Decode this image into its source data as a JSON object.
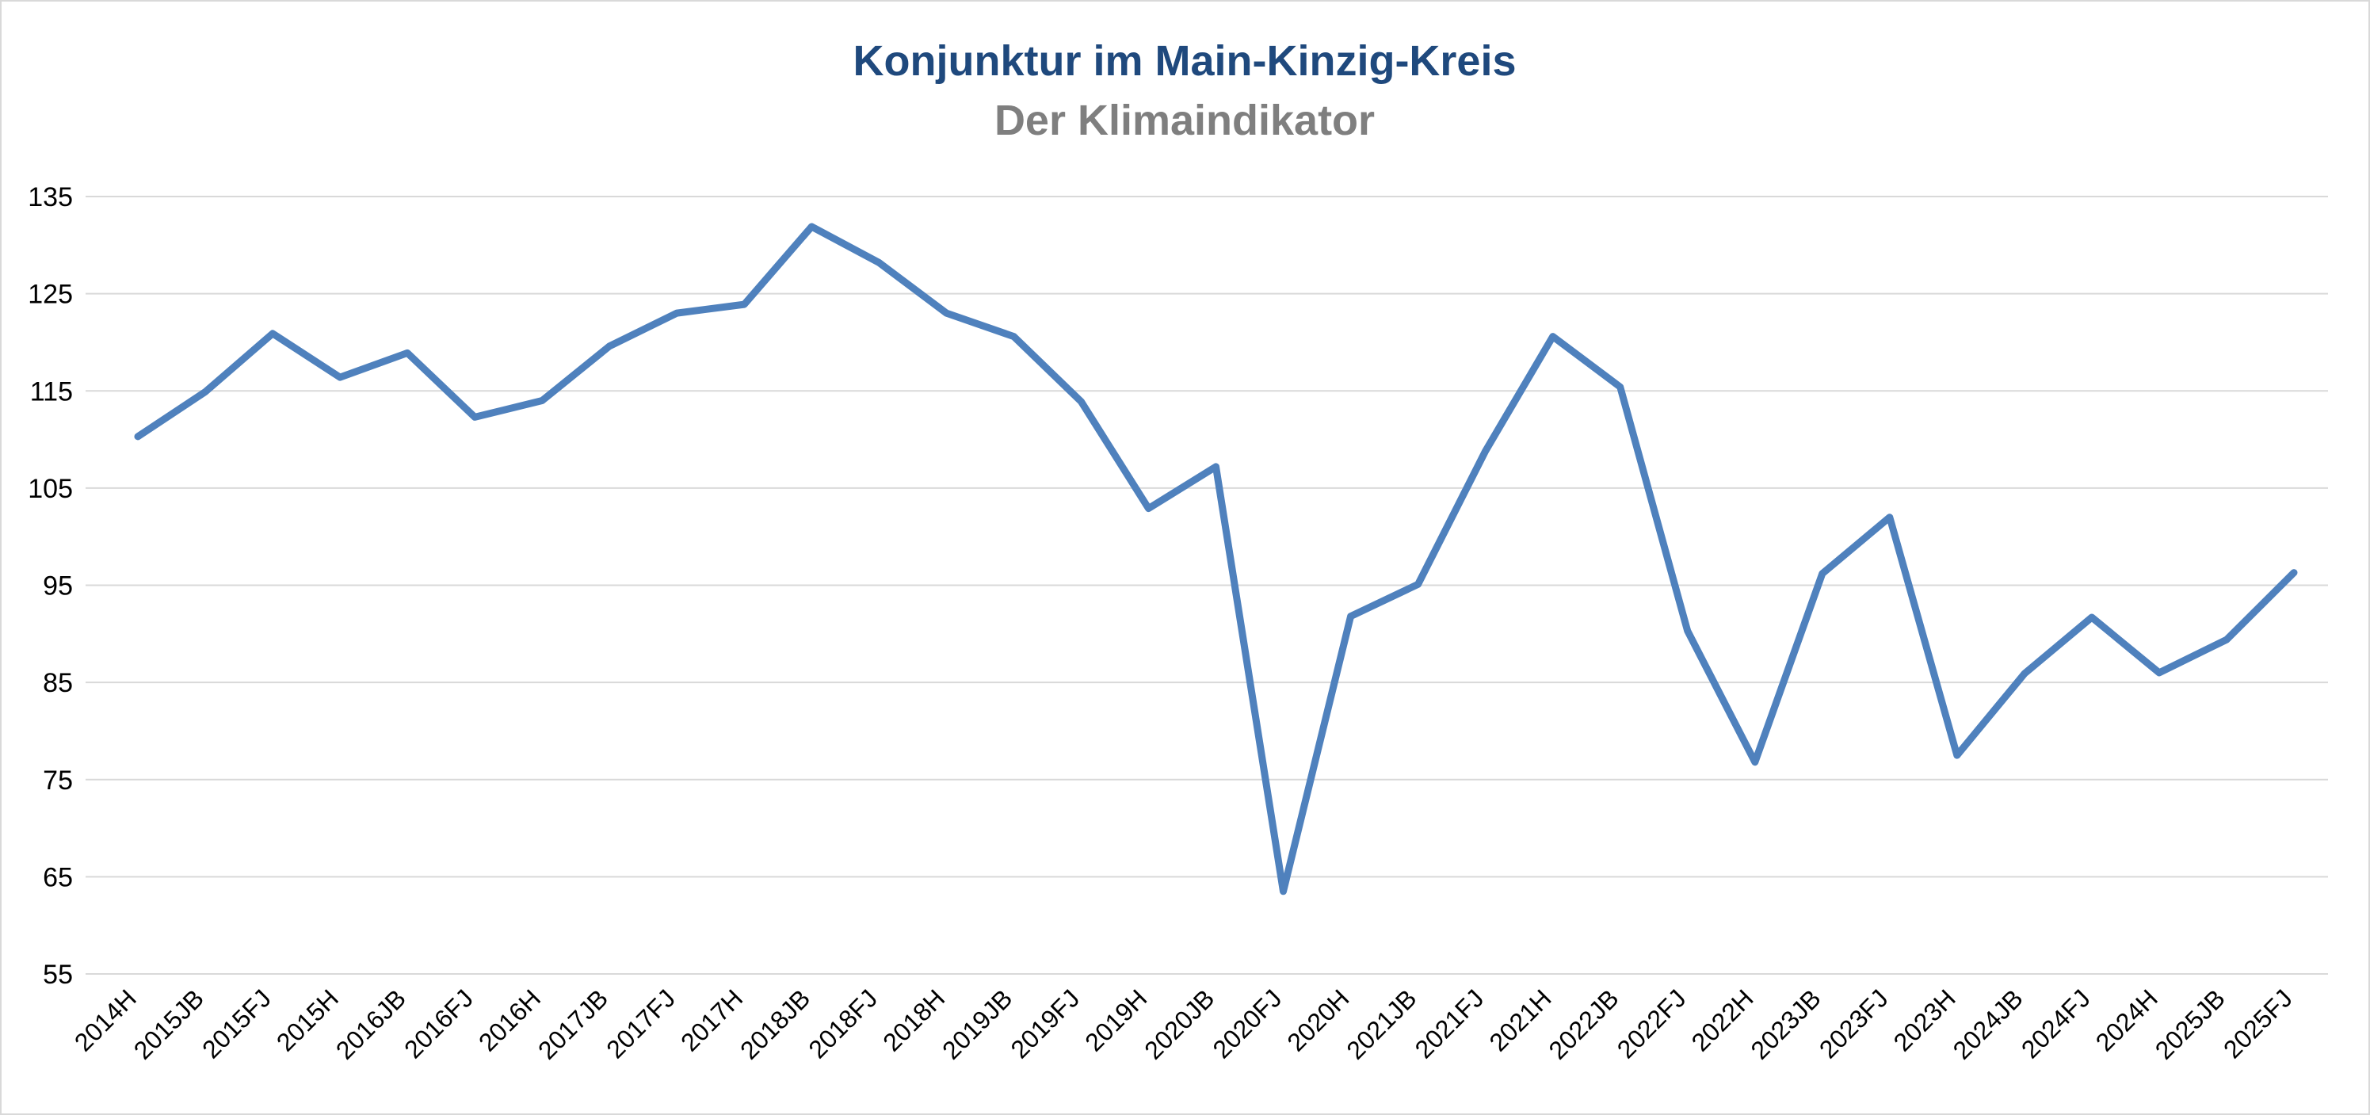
{
  "chart_data": {
    "type": "line",
    "title": "Konjunktur im Main-Kinzig-Kreis",
    "subtitle": "Der Klimaindikator",
    "xlabel": "",
    "ylabel": "",
    "ylim": [
      55,
      135
    ],
    "yticks": [
      "135",
      "125",
      "115",
      "105",
      "95",
      "85",
      "75",
      "65",
      "55"
    ],
    "grid": true,
    "legend": "none",
    "categories": [
      "2014H",
      "2015JB",
      "2015FJ",
      "2015H",
      "2016JB",
      "2016FJ",
      "2016H",
      "2017JB",
      "2017FJ",
      "2017H",
      "2018JB",
      "2018FJ",
      "2018H",
      "2019JB",
      "2019FJ",
      "2019H",
      "2020JB",
      "2020FJ",
      "2020H",
      "2021JB",
      "2021FJ",
      "2021H",
      "2022JB",
      "2022FJ",
      "2022H",
      "2023JB",
      "2023FJ",
      "2023H",
      "2024JB",
      "2024FJ",
      "2024H",
      "2025JB",
      "2025FJ"
    ],
    "series": [
      {
        "color": "#4f81bd",
        "values": [
          110.3,
          114.9,
          120.9,
          116.4,
          118.9,
          112.3,
          114.0,
          119.6,
          123.0,
          123.9,
          131.9,
          128.2,
          123.0,
          120.6,
          113.9,
          102.9,
          107.2,
          63.5,
          91.8,
          95.1,
          108.8,
          120.6,
          115.4,
          90.3,
          76.8,
          96.2,
          102.0,
          77.5,
          85.9,
          91.7,
          86.0,
          89.4,
          96.3
        ]
      }
    ]
  }
}
